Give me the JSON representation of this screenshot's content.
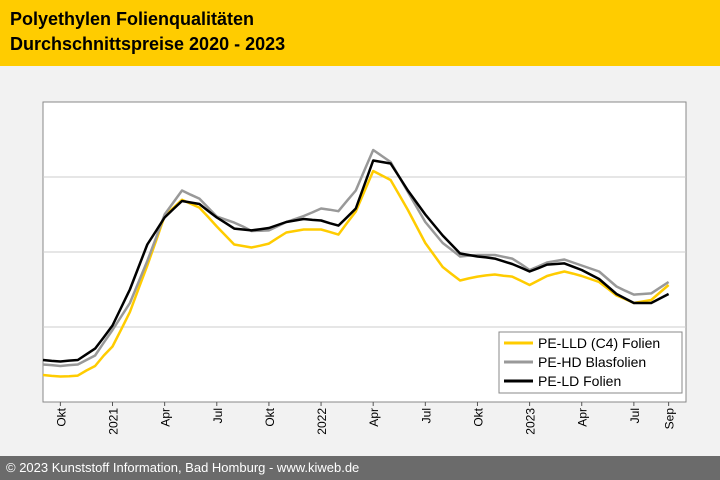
{
  "header": {
    "title_line1": "Polyethylen Folienqualitäten",
    "title_line2": "Durchschnittspreise 2020 - 2023"
  },
  "footer": {
    "text": "© 2023 Kunststoff Information, Bad Homburg - www.kiweb.de"
  },
  "colors": {
    "header_bg": "#ffcc00",
    "footer_bg": "#6b6b6b",
    "pe_lld": "#ffcc00",
    "pe_hd": "#999999",
    "pe_ld": "#000000",
    "grid": "#cccccc"
  },
  "chart_data": {
    "type": "line",
    "title": "Polyethylen Folienqualitäten Durchschnittspreise 2020 - 2023",
    "xlabel": "",
    "ylabel": "",
    "grid": true,
    "legend_position": "bottom-right",
    "ylim": [
      0,
      100
    ],
    "xlim": [
      0,
      37
    ],
    "x_tick_labels": [
      {
        "pos": 1,
        "label": "Okt"
      },
      {
        "pos": 4,
        "label": "2021"
      },
      {
        "pos": 7,
        "label": "Apr"
      },
      {
        "pos": 10,
        "label": "Jul"
      },
      {
        "pos": 13,
        "label": "Okt"
      },
      {
        "pos": 16,
        "label": "2022"
      },
      {
        "pos": 19,
        "label": "Apr"
      },
      {
        "pos": 22,
        "label": "Jul"
      },
      {
        "pos": 25,
        "label": "Okt"
      },
      {
        "pos": 28,
        "label": "2023"
      },
      {
        "pos": 31,
        "label": "Apr"
      },
      {
        "pos": 34,
        "label": "Jul"
      },
      {
        "pos": 36,
        "label": "Sep"
      }
    ],
    "x": [
      0,
      0.5,
      1,
      1.5,
      2,
      2.5,
      3,
      3.5,
      4,
      4.5,
      5,
      5.5,
      6,
      6.5,
      7,
      7.5,
      8,
      8.5,
      9,
      9.5,
      10,
      10.5,
      11,
      11.5,
      12,
      12.5,
      13,
      13.5,
      14,
      14.5,
      15,
      15.5,
      16,
      16.5,
      17,
      17.5,
      18,
      18.5,
      19,
      19.5,
      20,
      20.5,
      21,
      21.5,
      22,
      22.5,
      23,
      23.5,
      24,
      24.5,
      25,
      25.5,
      26,
      26.5,
      27,
      27.5,
      28,
      28.5,
      29,
      29.5,
      30,
      30.5,
      31,
      31.5,
      32,
      32.5,
      33,
      33.5,
      34,
      34.5,
      35,
      35.5,
      36
    ],
    "series": [
      {
        "name": "PE-LLD (C4) Folien",
        "color": "#ffcc00",
        "values": [
          9,
          8.7,
          8.5,
          8.6,
          8.8,
          10.5,
          12,
          15.5,
          18.5,
          24.2,
          30,
          37.8,
          45.5,
          53.7,
          62,
          64.7,
          67.4,
          66.1,
          64.8,
          61.7,
          58.5,
          55.5,
          52.5,
          52,
          51.5,
          52.1,
          52.8,
          54.7,
          56.5,
          57,
          57.5,
          57.5,
          57.5,
          56.7,
          55.8,
          59.7,
          63.5,
          70.3,
          77,
          75.5,
          74,
          69,
          64,
          58.5,
          53,
          49,
          45,
          42.7,
          40.5,
          41.2,
          41.8,
          42.2,
          42.5,
          42.1,
          41.8,
          40.4,
          39,
          40.5,
          42,
          42.8,
          43.5,
          42.8,
          42,
          41,
          40,
          37.8,
          35.5,
          34.3,
          33,
          33.5,
          34,
          36.5,
          39
        ]
      },
      {
        "name": "PE-HD Blasfolien",
        "color": "#999999",
        "values": [
          12.5,
          12.3,
          12,
          12.3,
          12.5,
          14,
          15.5,
          19.8,
          24,
          28.5,
          33,
          40,
          47,
          54.7,
          62.5,
          66.5,
          70.5,
          69.1,
          67.8,
          64.8,
          61.8,
          60.8,
          59.8,
          58.5,
          57,
          57.1,
          57.2,
          58.6,
          60,
          61,
          62,
          63.2,
          64.5,
          64.1,
          63.6,
          67.1,
          70.5,
          77.3,
          84,
          82,
          80,
          75,
          70,
          65,
          60,
          56.5,
          53,
          50.8,
          48.5,
          48.8,
          49,
          49,
          49,
          48.4,
          47.8,
          46,
          44,
          45.2,
          46.5,
          47,
          47.5,
          46.5,
          45.5,
          44.5,
          43.5,
          41,
          38.5,
          37.1,
          35.8,
          36,
          36.2,
          38.1,
          40
        ]
      },
      {
        "name": "PE-LD Folien",
        "color": "#000000",
        "values": [
          14,
          13.7,
          13.5,
          13.8,
          14,
          15.9,
          17.8,
          21.6,
          25.5,
          31.5,
          37.5,
          45,
          52.5,
          57,
          61.5,
          64.3,
          67,
          66.5,
          66,
          63.7,
          61.5,
          59.7,
          57.8,
          57.5,
          57.2,
          57.6,
          58,
          59,
          60,
          60.5,
          61,
          60.7,
          60.5,
          59.6,
          58.8,
          61.6,
          64.5,
          72.5,
          80.5,
          80,
          79.5,
          75,
          70.5,
          66.5,
          62.5,
          59,
          55.5,
          52.5,
          49.5,
          49,
          48.5,
          48.2,
          47.8,
          46.9,
          46,
          44.8,
          43.5,
          44.6,
          45.8,
          46,
          46.2,
          45.1,
          44,
          42.5,
          41,
          38.5,
          36,
          34.5,
          33,
          33,
          33,
          34.5,
          36
        ]
      }
    ]
  }
}
